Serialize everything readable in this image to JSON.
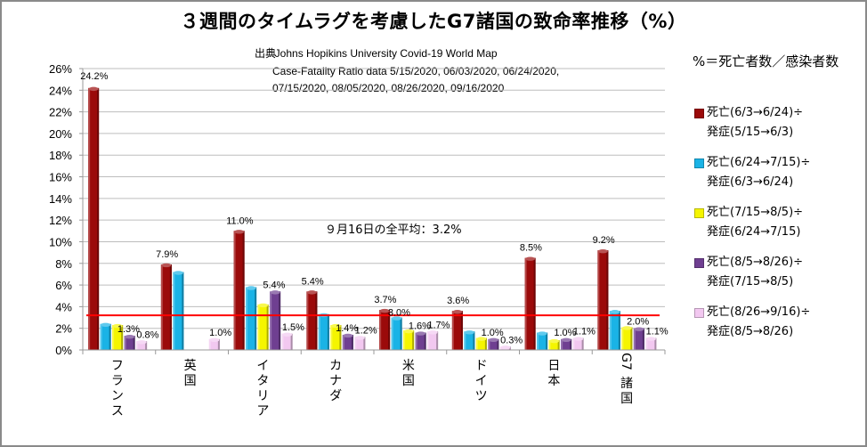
{
  "chart_data": {
    "type": "bar",
    "title": "３週間のタイムラグを考慮したG7諸国の致命率推移（%）",
    "source": {
      "label": "出典",
      "lines": [
        ": Johns Hopikins University   Covid-19 World Map",
        "Case-Fatality Ratio data   5/15/2020, 06/03/2020, 06/24/2020,",
        "07/15/2020, 08/05/2020, 08/26/2020, 09/16/2020"
      ]
    },
    "legend_title": "%＝死亡者数／感染者数",
    "legend_position": "right",
    "xlabel": "",
    "ylabel": "",
    "ylim": [
      0,
      26
    ],
    "yticks": [
      "0%",
      "2%",
      "4%",
      "6%",
      "8%",
      "10%",
      "12%",
      "14%",
      "16%",
      "18%",
      "20%",
      "22%",
      "24%",
      "26%"
    ],
    "grid": true,
    "categories": [
      "フランス",
      "英国",
      "イタリア",
      "カナダ",
      "米国",
      "ドイツ",
      "日本",
      "G7諸国"
    ],
    "series": [
      {
        "name": "死亡(6/3→6/24)÷発症(5/15→6/3)",
        "legend_line1": "死亡(6/3→6/24)÷",
        "legend_line2": "発症(5/15→6/3)",
        "color": "#9b0a0a",
        "values": [
          24.2,
          7.9,
          11.0,
          5.4,
          3.7,
          3.6,
          8.5,
          9.2
        ],
        "labels": [
          "24.2%",
          "7.9%",
          "11.0%",
          "5.4%",
          "3.7%",
          "3.6%",
          "8.5%",
          "9.2%"
        ]
      },
      {
        "name": "死亡(6/24→7/15)÷発症(6/3→6/24)",
        "legend_line1": "死亡(6/24→7/15)÷",
        "legend_line2": "発症(6/3→6/24)",
        "color": "#1ab3e6",
        "values": [
          2.4,
          7.2,
          5.8,
          3.3,
          3.0,
          1.7,
          1.6,
          3.6
        ],
        "labels": [
          "",
          "",
          "",
          "",
          "3.0%",
          "",
          "",
          ""
        ]
      },
      {
        "name": "死亡(7/15→8/5)÷発症(6/24→7/15)",
        "legend_line1": "死亡(7/15→8/5)÷",
        "legend_line2": "発症(6/24→7/15)",
        "color": "#f5f500",
        "values": [
          2.3,
          null,
          4.2,
          2.3,
          1.8,
          1.1,
          0.9,
          2.1
        ],
        "labels": [
          "",
          "",
          "",
          "",
          "",
          "",
          "",
          ""
        ]
      },
      {
        "name": "死亡(8/5→8/26)÷発症(7/15→8/5)",
        "legend_line1": "死亡(8/5→8/26)÷",
        "legend_line2": "発症(7/15→8/5)",
        "color": "#6f3f91",
        "values": [
          1.3,
          null,
          5.4,
          1.4,
          1.6,
          1.0,
          1.0,
          2.0
        ],
        "labels": [
          "1.3%",
          "",
          "5.4%",
          "1.4%",
          "1.6%",
          "1.0%",
          "1.0%",
          "2.0%"
        ]
      },
      {
        "name": "死亡(8/26→9/16)÷発症(8/5→8/26)",
        "legend_line1": "死亡(8/26→9/16)÷",
        "legend_line2": "発症(8/5→8/26)",
        "color": "#f2c8f0",
        "values": [
          0.8,
          1.0,
          1.5,
          1.2,
          1.7,
          0.3,
          1.1,
          1.1
        ],
        "labels": [
          "0.8%",
          "1.0%",
          "1.5%",
          "1.2%",
          "1.7%",
          "0.3%",
          "1.1%",
          "1.1%"
        ]
      }
    ],
    "reference_line": {
      "value": 3.2,
      "color": "#ff0000",
      "annotation": "９月16日の全平均：3.2%"
    }
  }
}
